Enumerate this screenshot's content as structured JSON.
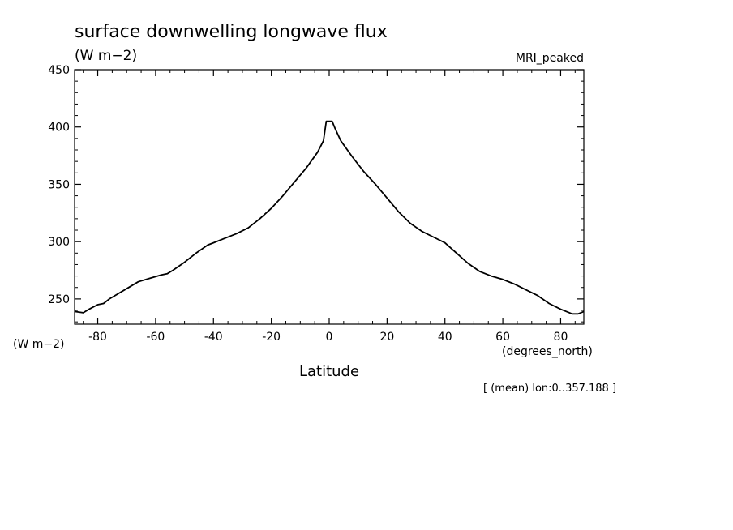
{
  "chart_data": {
    "type": "line",
    "title": "surface downwelling longwave flux",
    "units_label": "(W m−2)",
    "model_label": "MRI_peaked",
    "ylabel": "(W m−2)",
    "xlabel": "Latitude",
    "x_unit_label": "(degrees_north)",
    "footnote": "[ (mean) lon:0..357.188 ]",
    "xlim": [
      -88,
      88
    ],
    "ylim": [
      228,
      450
    ],
    "x_ticks": [
      -80,
      -60,
      -40,
      -20,
      0,
      20,
      40,
      60,
      80
    ],
    "y_ticks": [
      250,
      300,
      350,
      400,
      450
    ],
    "x_tick_labels": [
      "-80",
      "-60",
      "-40",
      "-20",
      "0",
      "20",
      "40",
      "60",
      "80"
    ],
    "y_tick_labels": [
      "250",
      "300",
      "350",
      "400",
      "450"
    ],
    "grid": false,
    "series": [
      {
        "x": [
          -88,
          -85,
          -83,
          -80,
          -78,
          -76,
          -74,
          -70,
          -66,
          -62,
          -58,
          -56,
          -54,
          -50,
          -46,
          -42,
          -40,
          -36,
          -32,
          -28,
          -24,
          -20,
          -16,
          -12,
          -8,
          -4,
          -2,
          -1,
          1,
          2,
          4,
          8,
          12,
          16,
          20,
          24,
          28,
          32,
          36,
          40,
          44,
          48,
          52,
          56,
          60,
          64,
          68,
          72,
          76,
          80,
          84,
          86,
          88
        ],
        "y": [
          239,
          238,
          241,
          245,
          246,
          250,
          253,
          259,
          265,
          268,
          271,
          272,
          275,
          282,
          290,
          297,
          299,
          303,
          307,
          312,
          320,
          329,
          340,
          352,
          364,
          378,
          388,
          405,
          405,
          399,
          388,
          374,
          361,
          350,
          338,
          326,
          316,
          309,
          304,
          299,
          290,
          281,
          274,
          270,
          267,
          263,
          258,
          253,
          246,
          241,
          237,
          237,
          239
        ]
      }
    ]
  }
}
